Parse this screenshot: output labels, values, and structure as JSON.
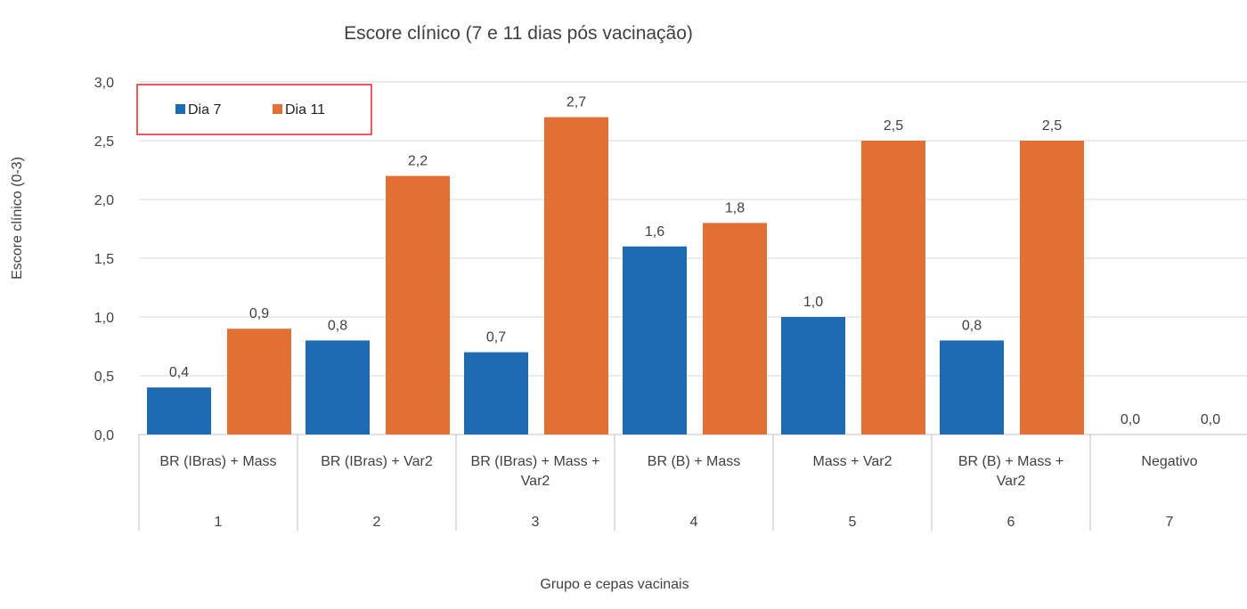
{
  "chart_data": {
    "type": "bar",
    "title": "Escore clínico (7 e 11 dias pós vacinação)",
    "xlabel": "Grupo e cepas vacinais",
    "ylabel": "Escore clínico (0-3)",
    "ylim": [
      0,
      3
    ],
    "yticks": [
      "0,0",
      "0,5",
      "1,0",
      "1,5",
      "2,0",
      "2,5",
      "3,0"
    ],
    "categories": [
      {
        "group": "1",
        "label": [
          "BR (IBras) + Mass"
        ]
      },
      {
        "group": "2",
        "label": [
          "BR (IBras) + Var2"
        ]
      },
      {
        "group": "3",
        "label": [
          "BR (IBras) + Mass +",
          "Var2"
        ]
      },
      {
        "group": "4",
        "label": [
          "BR (B) + Mass"
        ]
      },
      {
        "group": "5",
        "label": [
          "Mass + Var2"
        ]
      },
      {
        "group": "6",
        "label": [
          "BR (B) + Mass +",
          "Var2"
        ]
      },
      {
        "group": "7",
        "label": [
          "Negativo"
        ]
      }
    ],
    "series": [
      {
        "name": "Dia 7",
        "color": "#1F6BB3",
        "values": [
          0.4,
          0.8,
          0.7,
          1.6,
          1.0,
          0.8,
          0.0
        ],
        "labels": [
          "0,4",
          "0,8",
          "0,7",
          "1,6",
          "1,0",
          "0,8",
          "0,0"
        ]
      },
      {
        "name": "Dia 11",
        "color": "#E07033",
        "values": [
          0.9,
          2.2,
          2.7,
          1.8,
          2.5,
          2.5,
          0.0
        ],
        "labels": [
          "0,9",
          "2,2",
          "2,7",
          "1,8",
          "2,5",
          "2,5",
          "0,0"
        ]
      }
    ],
    "grid": true,
    "legend_position": "top-left",
    "legend_border_color": "#E8202A"
  }
}
